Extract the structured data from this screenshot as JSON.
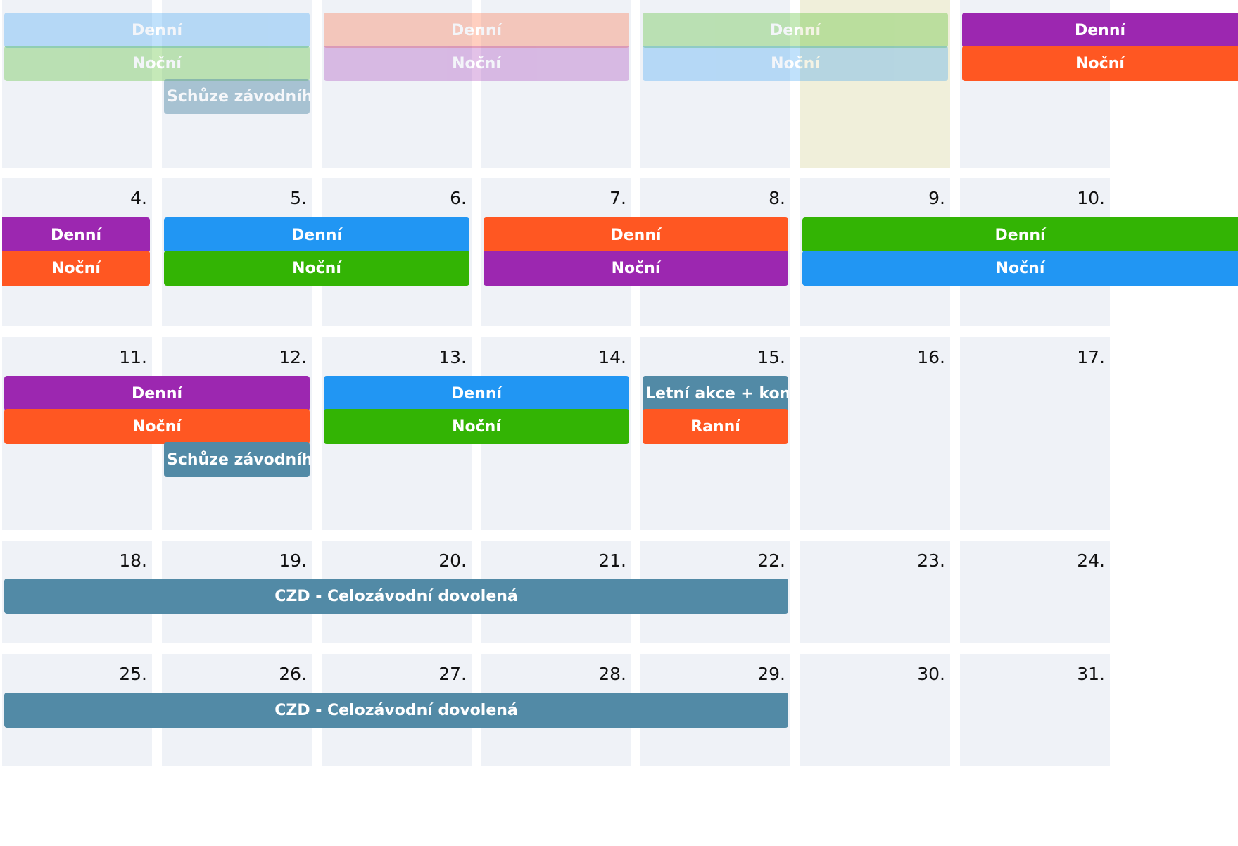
{
  "colors": {
    "cell_bg": "#eff2f7",
    "today_bg": "#f0efda",
    "purple": "#9c27b0",
    "orange": "#ff5722",
    "blue": "#2196f3",
    "green": "#33b404",
    "steel": "#528aa6"
  },
  "weeks": [
    {
      "days": [
        "",
        "",
        "",
        "",
        "",
        "",
        ""
      ],
      "today_index": 5,
      "events": [
        {
          "label": "Denní",
          "color": "blue",
          "from": 0,
          "to": 1,
          "row": 0,
          "style": "faded"
        },
        {
          "label": "Noční",
          "color": "green",
          "from": 0,
          "to": 1,
          "row": 1,
          "style": "faded"
        },
        {
          "label": "Schůze závodního výboru",
          "color": "steel",
          "from": 1,
          "to": 1,
          "row": 2,
          "style": "muted",
          "align": "left"
        },
        {
          "label": "Denní",
          "color": "orange",
          "from": 2,
          "to": 3,
          "row": 0,
          "style": "faded"
        },
        {
          "label": "Noční",
          "color": "purple",
          "from": 2,
          "to": 3,
          "row": 1,
          "style": "faded"
        },
        {
          "label": "Denní",
          "color": "green",
          "from": 4,
          "to": 5,
          "row": 0,
          "style": "faded"
        },
        {
          "label": "Noční",
          "color": "blue",
          "from": 4,
          "to": 5,
          "row": 1,
          "style": "faded"
        },
        {
          "label": "Denní",
          "color": "purple",
          "from": 6,
          "to": 6,
          "row": 0,
          "style": "",
          "open_right": true
        },
        {
          "label": "Noční",
          "color": "orange",
          "from": 6,
          "to": 6,
          "row": 1,
          "style": "",
          "open_right": true
        }
      ]
    },
    {
      "days": [
        "4.",
        "5.",
        "6.",
        "7.",
        "8.",
        "9.",
        "10."
      ],
      "events": [
        {
          "label": "Denní",
          "color": "purple",
          "from": 0,
          "to": 0,
          "row": 0,
          "style": "",
          "open_left": true
        },
        {
          "label": "Noční",
          "color": "orange",
          "from": 0,
          "to": 0,
          "row": 1,
          "style": "",
          "open_left": true
        },
        {
          "label": "Denní",
          "color": "blue",
          "from": 1,
          "to": 2,
          "row": 0,
          "style": ""
        },
        {
          "label": "Noční",
          "color": "green",
          "from": 1,
          "to": 2,
          "row": 1,
          "style": ""
        },
        {
          "label": "Denní",
          "color": "orange",
          "from": 3,
          "to": 4,
          "row": 0,
          "style": ""
        },
        {
          "label": "Noční",
          "color": "purple",
          "from": 3,
          "to": 4,
          "row": 1,
          "style": ""
        },
        {
          "label": "Denní",
          "color": "green",
          "from": 5,
          "to": 6,
          "row": 0,
          "style": "",
          "open_right": true
        },
        {
          "label": "Noční",
          "color": "blue",
          "from": 5,
          "to": 6,
          "row": 1,
          "style": "",
          "open_right": true
        }
      ]
    },
    {
      "days": [
        "11.",
        "12.",
        "13.",
        "14.",
        "15.",
        "16.",
        "17."
      ],
      "events": [
        {
          "label": "Denní",
          "color": "purple",
          "from": 0,
          "to": 1,
          "row": 0,
          "style": ""
        },
        {
          "label": "Noční",
          "color": "orange",
          "from": 0,
          "to": 1,
          "row": 1,
          "style": ""
        },
        {
          "label": "Schůze závodního výboru",
          "color": "steel",
          "from": 1,
          "to": 1,
          "row": 2,
          "style": "",
          "align": "left"
        },
        {
          "label": "Denní",
          "color": "blue",
          "from": 2,
          "to": 3,
          "row": 0,
          "style": ""
        },
        {
          "label": "Noční",
          "color": "green",
          "from": 2,
          "to": 3,
          "row": 1,
          "style": ""
        },
        {
          "label": "Letní akce + konference",
          "color": "steel",
          "from": 4,
          "to": 4,
          "row": 0,
          "style": "",
          "align": "left"
        },
        {
          "label": "Ranní",
          "color": "orange",
          "from": 4,
          "to": 4,
          "row": 1,
          "style": ""
        }
      ]
    },
    {
      "days": [
        "18.",
        "19.",
        "20.",
        "21.",
        "22.",
        "23.",
        "24."
      ],
      "events": [
        {
          "label": "CZD - Celozávodní dovolená",
          "color": "steel",
          "from": 0,
          "to": 4,
          "row": 0,
          "style": ""
        }
      ]
    },
    {
      "days": [
        "25.",
        "26.",
        "27.",
        "28.",
        "29.",
        "30.",
        "31."
      ],
      "events": [
        {
          "label": "CZD - Celozávodní dovolená",
          "color": "steel",
          "from": 0,
          "to": 4,
          "row": 0,
          "style": ""
        }
      ]
    }
  ]
}
